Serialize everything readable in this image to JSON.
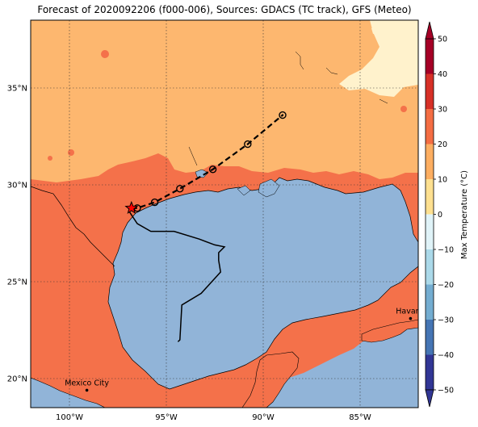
{
  "title": "Forecast of 2020092206 (f000-006), Sources: GDACS (TC track), GFS (Meteo)",
  "map": {
    "lon_range": [
      -102,
      -82
    ],
    "lat_range": [
      18.5,
      38.5
    ],
    "lon_ticks": [
      {
        "value": -100,
        "label": "100°W"
      },
      {
        "value": -95,
        "label": "95°W"
      },
      {
        "value": -90,
        "label": "90°W"
      },
      {
        "value": -85,
        "label": "85°W"
      }
    ],
    "lat_ticks": [
      {
        "value": 35,
        "label": "35°N"
      },
      {
        "value": 30,
        "label": "30°N"
      },
      {
        "value": 25,
        "label": "25°N"
      },
      {
        "value": 20,
        "label": "20°N"
      }
    ],
    "gridlines": true,
    "gridline_style": "dotted",
    "cities": [
      {
        "name": "Havana",
        "lon": -82.4,
        "lat": 23.1
      },
      {
        "name": "Mexico City",
        "lon": -99.1,
        "lat": 19.4
      }
    ],
    "current_position": {
      "lon": -96.8,
      "lat": 28.8,
      "marker": "star-icon",
      "color": "#ff0000"
    },
    "forecast_track_points": [
      {
        "lon": -96.5,
        "lat": 28.8
      },
      {
        "lon": -95.6,
        "lat": 29.1
      },
      {
        "lon": -94.3,
        "lat": 29.8
      },
      {
        "lon": -92.6,
        "lat": 30.8
      },
      {
        "lon": -90.8,
        "lat": 32.1
      },
      {
        "lon": -89.0,
        "lat": 33.6
      }
    ],
    "past_track": [
      [
        -94.4,
        21.9
      ],
      [
        -94.3,
        22.0
      ],
      [
        -94.2,
        23.8
      ],
      [
        -93.2,
        24.4
      ],
      [
        -92.2,
        25.5
      ],
      [
        -92.3,
        26.1
      ],
      [
        -92.3,
        26.5
      ],
      [
        -92.0,
        26.8
      ],
      [
        -92.5,
        26.9
      ],
      [
        -93.3,
        27.2
      ],
      [
        -94.6,
        27.6
      ],
      [
        -95.8,
        27.6
      ],
      [
        -96.5,
        28.0
      ],
      [
        -96.9,
        28.6
      ]
    ],
    "colors": {
      "land_20_30": "#fdb76f",
      "land_30_40": "#f4714a",
      "land_10_20": "#fff2cc",
      "water": "#91b4d8"
    }
  },
  "colorbar": {
    "label": "Max Temperature (°C)",
    "ticks": [
      "50",
      "40",
      "30",
      "20",
      "10",
      "0",
      "−10",
      "−20",
      "−30",
      "−40",
      "−50"
    ],
    "bands": [
      "#a50026",
      "#d73027",
      "#f46d43",
      "#fdae61",
      "#fee090",
      "#e0f3f8",
      "#abd9e9",
      "#74add1",
      "#4575b4",
      "#313695"
    ]
  }
}
